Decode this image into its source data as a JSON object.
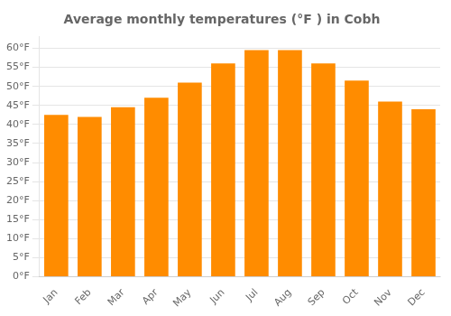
{
  "chart_data": {
    "type": "bar",
    "title": "Average monthly temperatures (°F ) in Cobh",
    "categories": [
      "Jan",
      "Feb",
      "Mar",
      "Apr",
      "May",
      "Jun",
      "Jul",
      "Aug",
      "Sep",
      "Oct",
      "Nov",
      "Dec"
    ],
    "values": [
      42.5,
      42.0,
      44.5,
      47.0,
      51.0,
      56.0,
      59.5,
      59.5,
      56.0,
      51.5,
      46.0,
      44.0
    ],
    "color": "#FF8C00",
    "ylim": [
      0,
      63
    ],
    "yticks": [
      {
        "value": 0,
        "label": "0°F"
      },
      {
        "value": 5,
        "label": "5°F"
      },
      {
        "value": 10,
        "label": "10°F"
      },
      {
        "value": 15,
        "label": "15°F"
      },
      {
        "value": 20,
        "label": "20°F"
      },
      {
        "value": 25,
        "label": "25°F"
      },
      {
        "value": 30,
        "label": "30°F"
      },
      {
        "value": 35,
        "label": "35°F"
      },
      {
        "value": 40,
        "label": "40°F"
      },
      {
        "value": 45,
        "label": "45°F"
      },
      {
        "value": 50,
        "label": "50°F"
      },
      {
        "value": 55,
        "label": "55°F"
      },
      {
        "value": 60,
        "label": "60°F"
      }
    ],
    "grid": "y"
  }
}
